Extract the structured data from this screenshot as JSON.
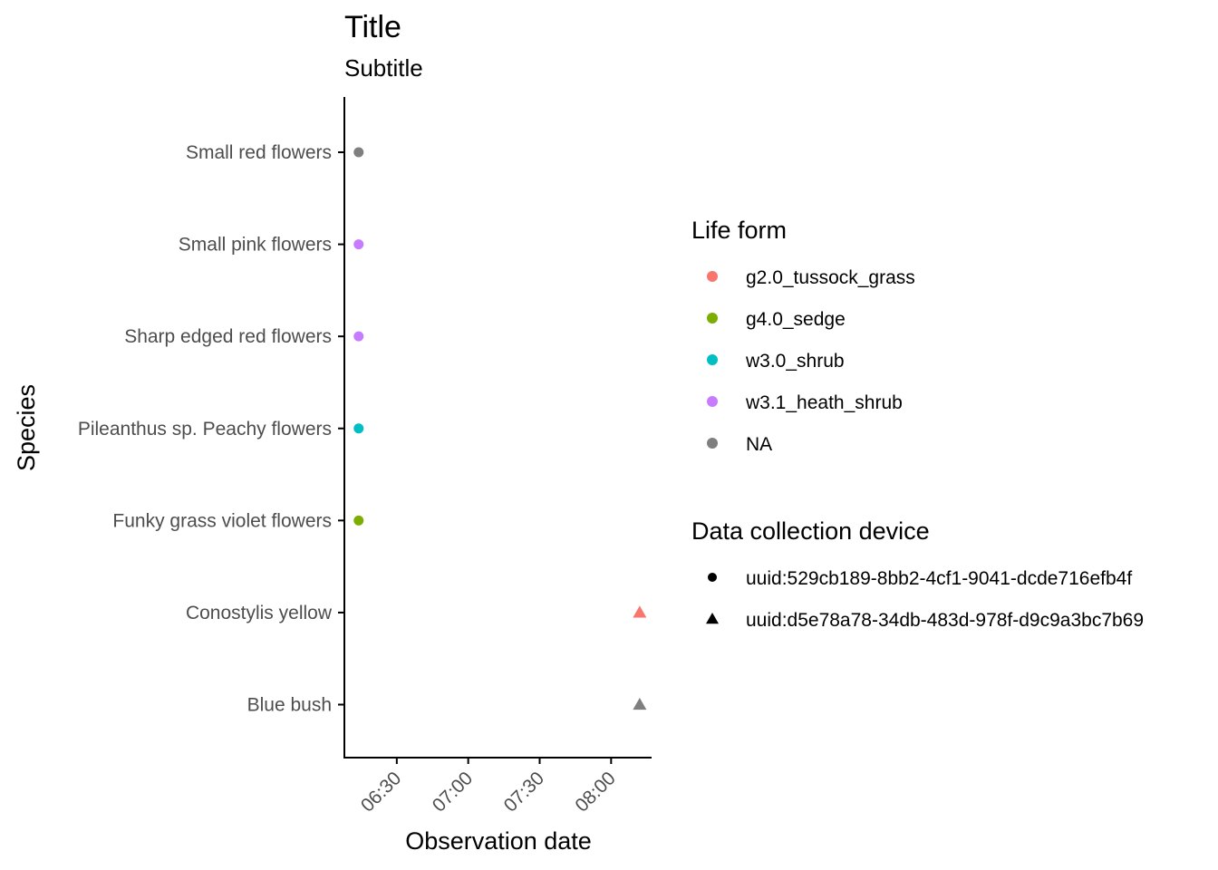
{
  "chart_data": {
    "type": "scatter",
    "title": "Title",
    "subtitle": "Subtitle",
    "xlabel": "Observation date",
    "ylabel": "Species",
    "x_axis": {
      "scale": "time",
      "range": [
        "06:08",
        "08:17"
      ],
      "ticks": [
        "06:30",
        "07:00",
        "07:30",
        "08:00"
      ]
    },
    "y_categories": [
      "Blue bush",
      "Conostylis yellow",
      "Funky grass violet flowers",
      "Pileanthus sp. Peachy flowers",
      "Sharp edged red flowers",
      "Small pink flowers",
      "Small red flowers"
    ],
    "points": [
      {
        "species": "Small red flowers",
        "time": "06:14",
        "life_form": "NA",
        "device": "uuid:529cb189-8bb2-4cf1-9041-dcde716efb4f"
      },
      {
        "species": "Small pink flowers",
        "time": "06:14",
        "life_form": "w3.1_heath_shrub",
        "device": "uuid:529cb189-8bb2-4cf1-9041-dcde716efb4f"
      },
      {
        "species": "Sharp edged red flowers",
        "time": "06:14",
        "life_form": "w3.1_heath_shrub",
        "device": "uuid:529cb189-8bb2-4cf1-9041-dcde716efb4f"
      },
      {
        "species": "Pileanthus sp. Peachy flowers",
        "time": "06:14",
        "life_form": "w3.0_shrub",
        "device": "uuid:529cb189-8bb2-4cf1-9041-dcde716efb4f"
      },
      {
        "species": "Funky grass violet flowers",
        "time": "06:14",
        "life_form": "g4.0_sedge",
        "device": "uuid:529cb189-8bb2-4cf1-9041-dcde716efb4f"
      },
      {
        "species": "Conostylis yellow",
        "time": "08:12",
        "life_form": "g2.0_tussock_grass",
        "device": "uuid:d5e78a78-34db-483d-978f-d9c9a3bc7b69"
      },
      {
        "species": "Blue bush",
        "time": "08:12",
        "life_form": "NA",
        "device": "uuid:d5e78a78-34db-483d-978f-d9c9a3bc7b69"
      }
    ],
    "legend_placement": "right",
    "grid": false,
    "legends": {
      "life_form": {
        "title": "Life form",
        "entries": [
          {
            "label": "g2.0_tussock_grass",
            "color": "#F8766D"
          },
          {
            "label": "g4.0_sedge",
            "color": "#7CAE00"
          },
          {
            "label": "w3.0_shrub",
            "color": "#00BFC4"
          },
          {
            "label": "w3.1_heath_shrub",
            "color": "#C77CFF"
          },
          {
            "label": "NA",
            "color": "#7F7F7F"
          }
        ]
      },
      "device": {
        "title": "Data collection device",
        "entries": [
          {
            "label": "uuid:529cb189-8bb2-4cf1-9041-dcde716efb4f",
            "shape": "circle"
          },
          {
            "label": "uuid:d5e78a78-34db-483d-978f-d9c9a3bc7b69",
            "shape": "triangle"
          }
        ]
      }
    }
  }
}
